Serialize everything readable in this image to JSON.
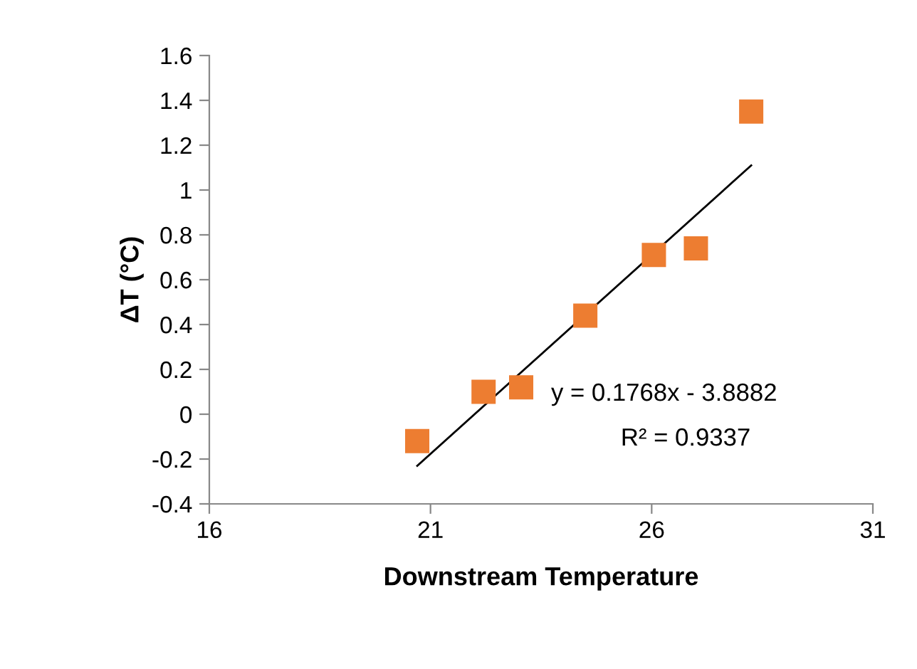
{
  "chart_data": {
    "type": "scatter",
    "xlabel": "Downstream Temperature",
    "ylabel": "ΔT (°C)",
    "series": [
      {
        "color": "#ed7d31",
        "marker": "square",
        "x": [
          20.7,
          22.2,
          23.05,
          24.5,
          26.05,
          27.0,
          28.25
        ],
        "values": [
          -0.12,
          0.1,
          0.12,
          0.44,
          0.71,
          0.74,
          1.35
        ]
      },
      {
        "type": "line",
        "color": "#000000",
        "marker": "none",
        "x": [
          20.7,
          28.25
        ],
        "values": [
          -0.23,
          1.11
        ]
      }
    ],
    "annotations": [
      "y = 0.1768x - 3.8882",
      "R² = 0.9337"
    ],
    "xlim": [
      16,
      31
    ],
    "xticks": [
      16,
      21,
      26,
      31
    ],
    "ylim": [
      -0.4,
      1.6
    ],
    "yticks": [
      -0.4,
      -0.2,
      0,
      0.2,
      0.4,
      0.6,
      0.8,
      1,
      1.2,
      1.4,
      1.6
    ],
    "grid": false,
    "legend": false
  }
}
